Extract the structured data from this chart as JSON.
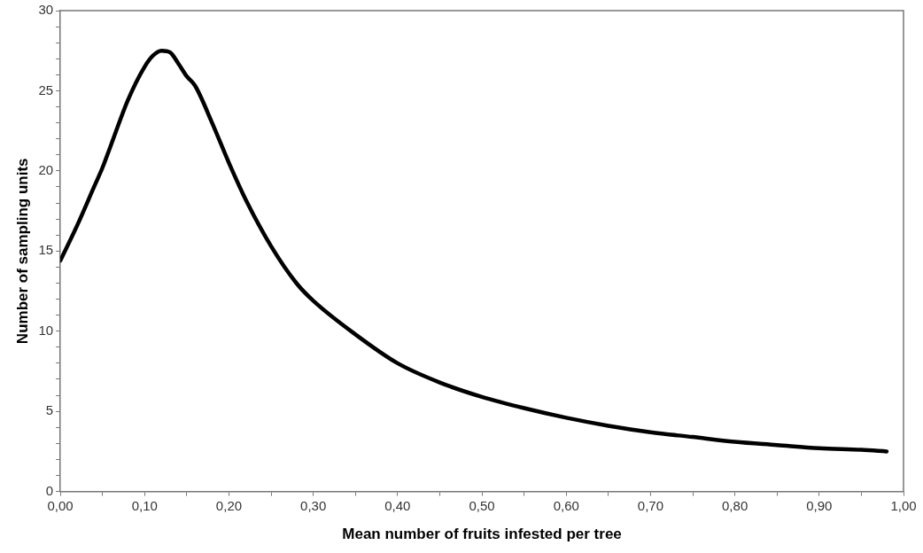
{
  "chart_data": {
    "type": "line",
    "xlabel": "Mean number of fruits infested per tree",
    "ylabel": "Number of sampling units",
    "x": [
      0,
      0.02,
      0.04,
      0.05,
      0.06,
      0.08,
      0.1,
      0.11,
      0.12,
      0.13,
      0.14,
      0.15,
      0.16,
      0.18,
      0.2,
      0.22,
      0.25,
      0.28,
      0.3,
      0.35,
      0.4,
      0.45,
      0.5,
      0.55,
      0.6,
      0.65,
      0.7,
      0.75,
      0.8,
      0.85,
      0.9,
      0.95,
      0.98
    ],
    "series": [
      {
        "color": "#000000",
        "values": [
          14.4,
          16.6,
          19.0,
          20.2,
          21.6,
          24.4,
          26.5,
          27.2,
          27.5,
          27.4,
          26.7,
          25.9,
          25.3,
          23.0,
          20.5,
          18.2,
          15.3,
          13.0,
          11.9,
          9.8,
          8.0,
          6.8,
          5.9,
          5.2,
          4.6,
          4.1,
          3.7,
          3.4,
          3.1,
          2.9,
          2.7,
          2.6,
          2.5
        ]
      }
    ],
    "xlim": [
      0,
      1
    ],
    "ylim": [
      0,
      30
    ],
    "xticks": [
      {
        "value": 0,
        "label": "0,00"
      },
      {
        "value": 0.05,
        "label": null
      },
      {
        "value": 0.1,
        "label": "0,10"
      },
      {
        "value": 0.15,
        "label": null
      },
      {
        "value": 0.2,
        "label": "0,20"
      },
      {
        "value": 0.25,
        "label": null
      },
      {
        "value": 0.3,
        "label": "0,30"
      },
      {
        "value": 0.35,
        "label": null
      },
      {
        "value": 0.4,
        "label": "0,40"
      },
      {
        "value": 0.45,
        "label": null
      },
      {
        "value": 0.5,
        "label": "0,50"
      },
      {
        "value": 0.55,
        "label": null
      },
      {
        "value": 0.6,
        "label": "0,60"
      },
      {
        "value": 0.65,
        "label": null
      },
      {
        "value": 0.7,
        "label": "0,70"
      },
      {
        "value": 0.75,
        "label": null
      },
      {
        "value": 0.8,
        "label": "0,80"
      },
      {
        "value": 0.85,
        "label": null
      },
      {
        "value": 0.9,
        "label": "0,90"
      },
      {
        "value": 0.95,
        "label": null
      },
      {
        "value": 1,
        "label": "1,00"
      }
    ],
    "yticks": [
      0,
      {
        "value": 1,
        "label": null
      },
      {
        "value": 2,
        "label": null
      },
      {
        "value": 3,
        "label": null
      },
      {
        "value": 4,
        "label": null
      },
      5,
      {
        "value": 6,
        "label": null
      },
      {
        "value": 7,
        "label": null
      },
      {
        "value": 8,
        "label": null
      },
      {
        "value": 9,
        "label": null
      },
      10,
      {
        "value": 11,
        "label": null
      },
      {
        "value": 12,
        "label": null
      },
      {
        "value": 13,
        "label": null
      },
      {
        "value": 14,
        "label": null
      },
      15,
      {
        "value": 16,
        "label": null
      },
      {
        "value": 17,
        "label": null
      },
      {
        "value": 18,
        "label": null
      },
      {
        "value": 19,
        "label": null
      },
      20,
      {
        "value": 21,
        "label": null
      },
      {
        "value": 22,
        "label": null
      },
      {
        "value": 23,
        "label": null
      },
      {
        "value": 24,
        "label": null
      },
      25,
      {
        "value": 26,
        "label": null
      },
      {
        "value": 27,
        "label": null
      },
      {
        "value": 28,
        "label": null
      },
      {
        "value": 29,
        "label": null
      },
      30
    ],
    "grid": false,
    "legend": false,
    "marker": "none",
    "line_style": "solid"
  }
}
